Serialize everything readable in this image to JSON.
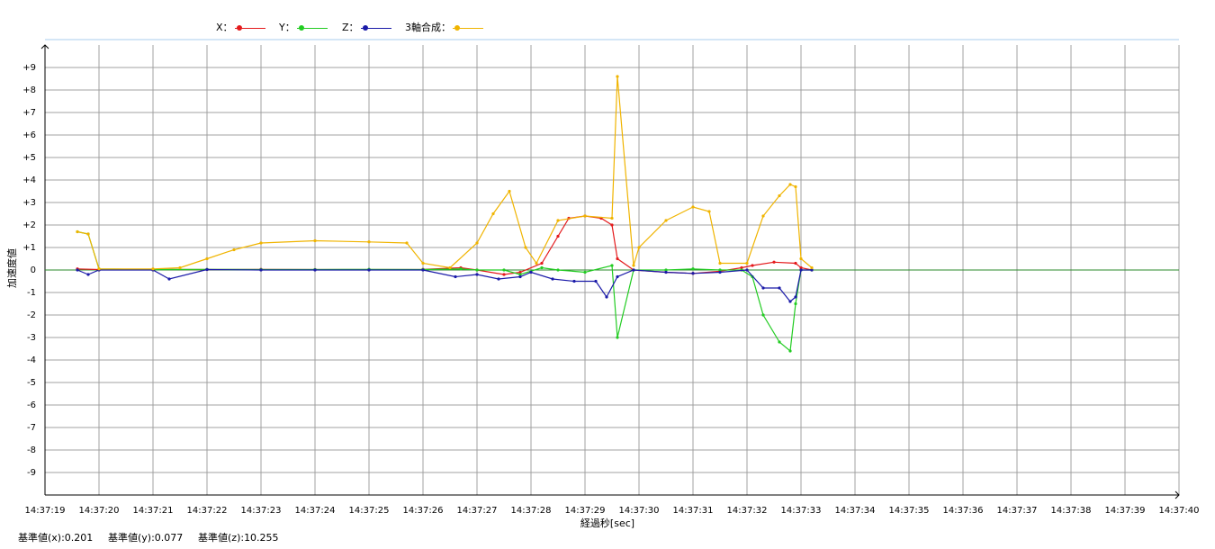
{
  "legend": [
    {
      "label": "X：",
      "color": "#e41a1c"
    },
    {
      "label": "Y：",
      "color": "#22cc22"
    },
    {
      "label": "Z：",
      "color": "#1a1aa8"
    },
    {
      "label": "3軸合成：",
      "color": "#f0b400"
    }
  ],
  "footer": {
    "x": "基準値(x):0.201",
    "y": "基準値(y):0.077",
    "z": "基準値(z):10.255"
  },
  "chart_data": {
    "type": "line",
    "title": "",
    "xlabel": "経過秒[sec]",
    "ylabel": "加速度値",
    "xlim": [
      "14:37:19",
      "14:37:40"
    ],
    "ylim": [
      -10,
      10
    ],
    "grid": true,
    "legend_position": "top-left",
    "x_ticks": [
      "14:37:19",
      "14:37:20",
      "14:37:21",
      "14:37:22",
      "14:37:23",
      "14:37:24",
      "14:37:25",
      "14:37:26",
      "14:37:27",
      "14:37:28",
      "14:37:29",
      "14:37:30",
      "14:37:31",
      "14:37:32",
      "14:37:33",
      "14:37:34",
      "14:37:35",
      "14:37:36",
      "14:37:37",
      "14:37:38",
      "14:37:39",
      "14:37:40"
    ],
    "y_ticks": [
      "+9",
      "+8",
      "+7",
      "+6",
      "+5",
      "+4",
      "+3",
      "+2",
      "+1",
      "0",
      "-1",
      "-2",
      "-3",
      "-4",
      "-5",
      "-6",
      "-7",
      "-8",
      "-9"
    ],
    "series": [
      {
        "name": "X",
        "color": "#e41a1c",
        "x": [
          "14:37:19.6",
          "14:37:20.0",
          "14:37:21.0",
          "14:37:22.0",
          "14:37:23.0",
          "14:37:24.0",
          "14:37:25.0",
          "14:37:26.0",
          "14:37:26.7",
          "14:37:27.0",
          "14:37:27.5",
          "14:37:27.8",
          "14:37:28.2",
          "14:37:28.5",
          "14:37:28.7",
          "14:37:29.0",
          "14:37:29.3",
          "14:37:29.5",
          "14:37:29.6",
          "14:37:29.9",
          "14:37:30.5",
          "14:37:31.0",
          "14:37:31.5",
          "14:37:31.9",
          "14:37:32.1",
          "14:37:32.5",
          "14:37:32.9",
          "14:37:33.0",
          "14:37:33.2"
        ],
        "y": [
          0.05,
          0.02,
          0.03,
          0.02,
          0.03,
          0.02,
          0.02,
          0.03,
          0.1,
          0.0,
          -0.2,
          -0.1,
          0.3,
          1.5,
          2.3,
          2.4,
          2.3,
          2.0,
          0.5,
          0.0,
          -0.1,
          -0.15,
          -0.05,
          0.1,
          0.2,
          0.35,
          0.3,
          0.1,
          0.0
        ]
      },
      {
        "name": "Y",
        "color": "#22cc22",
        "x": [
          "14:37:19.6",
          "14:37:19.8",
          "14:37:20.0",
          "14:37:21.0",
          "14:37:22.0",
          "14:37:23.0",
          "14:37:24.0",
          "14:37:25.0",
          "14:37:26.0",
          "14:37:26.7",
          "14:37:27.0",
          "14:37:27.5",
          "14:37:27.8",
          "14:37:28.2",
          "14:37:28.5",
          "14:37:29.0",
          "14:37:29.5",
          "14:37:29.6",
          "14:37:29.9",
          "14:37:30.5",
          "14:37:31.0",
          "14:37:31.5",
          "14:37:31.9",
          "14:37:32.1",
          "14:37:32.3",
          "14:37:32.6",
          "14:37:32.8",
          "14:37:32.9",
          "14:37:33.0",
          "14:37:33.2"
        ],
        "y": [
          1.7,
          1.6,
          0.05,
          0.02,
          0.03,
          0.02,
          0.02,
          0.03,
          0.02,
          0.05,
          0.0,
          0.0,
          -0.2,
          0.1,
          0.0,
          -0.1,
          0.2,
          -3.0,
          0.0,
          0.0,
          0.05,
          0.0,
          0.0,
          -0.3,
          -2.0,
          -3.2,
          -3.6,
          -1.5,
          0.0,
          0.0
        ]
      },
      {
        "name": "Z",
        "color": "#1a1aa8",
        "x": [
          "14:37:19.6",
          "14:37:19.8",
          "14:37:20.0",
          "14:37:21.0",
          "14:37:21.3",
          "14:37:22.0",
          "14:37:23.0",
          "14:37:24.0",
          "14:37:25.0",
          "14:37:26.0",
          "14:37:26.6",
          "14:37:27.0",
          "14:37:27.4",
          "14:37:27.8",
          "14:37:28.0",
          "14:37:28.4",
          "14:37:28.8",
          "14:37:29.2",
          "14:37:29.4",
          "14:37:29.6",
          "14:37:29.9",
          "14:37:30.5",
          "14:37:31.0",
          "14:37:31.5",
          "14:37:32.0",
          "14:37:32.3",
          "14:37:32.6",
          "14:37:32.8",
          "14:37:32.9",
          "14:37:33.0",
          "14:37:33.2"
        ],
        "y": [
          0.0,
          -0.2,
          0.0,
          0.0,
          -0.4,
          0.02,
          0.0,
          0.0,
          0.0,
          0.0,
          -0.3,
          -0.2,
          -0.4,
          -0.3,
          -0.1,
          -0.4,
          -0.5,
          -0.5,
          -1.2,
          -0.3,
          0.0,
          -0.1,
          -0.15,
          -0.1,
          0.0,
          -0.8,
          -0.8,
          -1.4,
          -1.2,
          0.0,
          0.0
        ]
      },
      {
        "name": "3軸合成",
        "color": "#f0b400",
        "x": [
          "14:37:19.6",
          "14:37:19.8",
          "14:37:20.0",
          "14:37:21.0",
          "14:37:21.5",
          "14:37:22.0",
          "14:37:22.5",
          "14:37:23.0",
          "14:37:24.0",
          "14:37:25.0",
          "14:37:25.7",
          "14:37:26.0",
          "14:37:26.5",
          "14:37:27.0",
          "14:37:27.3",
          "14:37:27.6",
          "14:37:27.9",
          "14:37:28.1",
          "14:37:28.5",
          "14:37:29.0",
          "14:37:29.5",
          "14:37:29.6",
          "14:37:29.9",
          "14:37:30.0",
          "14:37:30.5",
          "14:37:31.0",
          "14:37:31.3",
          "14:37:31.5",
          "14:37:32.0",
          "14:37:32.3",
          "14:37:32.6",
          "14:37:32.8",
          "14:37:32.9",
          "14:37:33.0",
          "14:37:33.2"
        ],
        "y": [
          1.7,
          1.6,
          0.05,
          0.05,
          0.1,
          0.5,
          0.9,
          1.2,
          1.3,
          1.25,
          1.2,
          0.3,
          0.1,
          1.2,
          2.5,
          3.5,
          1.0,
          0.3,
          2.2,
          2.4,
          2.3,
          8.6,
          0.2,
          1.0,
          2.2,
          2.8,
          2.6,
          0.3,
          0.3,
          2.4,
          3.3,
          3.8,
          3.7,
          0.5,
          0.1
        ]
      }
    ]
  }
}
